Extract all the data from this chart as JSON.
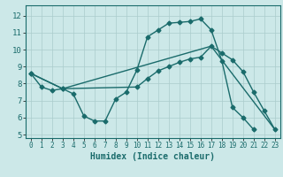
{
  "xlabel": "Humidex (Indice chaleur)",
  "bg_color": "#cce8e8",
  "grid_color": "#aacccc",
  "line_color": "#1a6b6b",
  "xlim": [
    -0.5,
    23.5
  ],
  "ylim": [
    4.8,
    12.6
  ],
  "yticks": [
    5,
    6,
    7,
    8,
    9,
    10,
    11,
    12
  ],
  "xticks": [
    0,
    1,
    2,
    3,
    4,
    5,
    6,
    7,
    8,
    9,
    10,
    11,
    12,
    13,
    14,
    15,
    16,
    17,
    18,
    19,
    20,
    21,
    22,
    23
  ],
  "line1_x": [
    0,
    1,
    2,
    3,
    4,
    5,
    6,
    7,
    8,
    9,
    10,
    11,
    12,
    13,
    14,
    15,
    16,
    17,
    18,
    19,
    20,
    21
  ],
  "line1_y": [
    8.6,
    7.8,
    7.6,
    7.7,
    7.4,
    6.1,
    5.8,
    5.8,
    7.1,
    7.5,
    8.8,
    10.75,
    11.15,
    11.55,
    11.6,
    11.65,
    11.8,
    11.15,
    9.35,
    6.6,
    6.0,
    5.3
  ],
  "line2_x": [
    0,
    3,
    10,
    11,
    12,
    13,
    14,
    15,
    16,
    17,
    18,
    19,
    20,
    21,
    22,
    23
  ],
  "line2_y": [
    8.6,
    7.7,
    7.8,
    8.3,
    8.75,
    9.0,
    9.25,
    9.45,
    9.55,
    10.2,
    9.8,
    9.4,
    8.7,
    7.5,
    6.4,
    5.3
  ],
  "line3_x": [
    0,
    3,
    17,
    23
  ],
  "line3_y": [
    8.6,
    7.7,
    10.2,
    5.3
  ]
}
